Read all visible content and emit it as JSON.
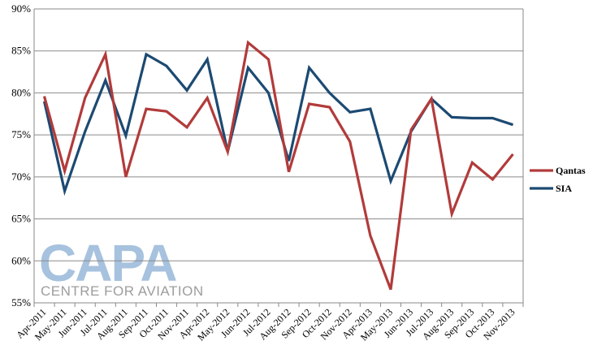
{
  "chart_data": {
    "type": "line",
    "categories": [
      "Apr-2011",
      "May-2011",
      "Jun-2011",
      "Jul-2011",
      "Aug-2011",
      "Sep-2011",
      "Oct-2011",
      "Nov-2011",
      "Apr-2012",
      "May-2012",
      "Jun-2012",
      "Jul-2012",
      "Aug-2012",
      "Sep-2012",
      "Oct-2012",
      "Nov-2012",
      "Apr-2013",
      "May-2013",
      "Jun-2013",
      "Jul-2013",
      "Aug-2013",
      "Sep-2013",
      "Oct-2013",
      "Nov-2013"
    ],
    "ylim": [
      55,
      90
    ],
    "yticks": [
      55,
      60,
      65,
      70,
      75,
      80,
      85,
      90
    ],
    "ytick_labels": [
      "55%",
      "60%",
      "65%",
      "70%",
      "75%",
      "80%",
      "85%",
      "90%"
    ],
    "grid": true,
    "legend_position": "right",
    "series": [
      {
        "name": "Qantas",
        "color": "#b23b3b",
        "values": [
          79.6,
          70.7,
          79.4,
          84.6,
          70.0,
          78.1,
          77.8,
          75.9,
          79.4,
          73.0,
          86.0,
          84.0,
          70.6,
          78.7,
          78.3,
          74.2,
          63.0,
          56.6,
          75.6,
          79.3,
          65.6,
          71.7,
          69.7,
          72.7
        ]
      },
      {
        "name": "SIA",
        "color": "#1c4a72",
        "values": [
          79.0,
          68.3,
          75.4,
          81.5,
          74.9,
          84.6,
          83.2,
          80.3,
          84.0,
          73.0,
          83.0,
          80.0,
          71.9,
          83.0,
          80.0,
          77.7,
          78.1,
          69.5,
          75.4,
          79.3,
          77.1,
          77.0,
          77.0,
          76.2
        ]
      }
    ]
  },
  "watermark": {
    "logo_text": "CAPA",
    "tagline": "CENTRE FOR AVIATION"
  }
}
